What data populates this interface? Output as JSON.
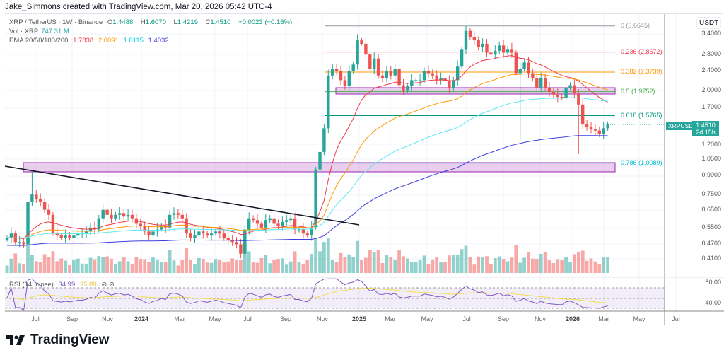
{
  "credit": "Jake_Simmons created with TradingView.com, Mar 20, 2026 05:42 UTC-4",
  "legend": {
    "symbol": "XRP / TetherUS · 1W · Binance",
    "o": "O",
    "o_val": "1.4488",
    "h": "H",
    "h_val": "1.6070",
    "l": "L",
    "l_val": "1.4219",
    "c": "C",
    "c_val": "1.4510",
    "change": "+0.0023 (+0.16%)",
    "vol_label": "Vol · XRP",
    "vol_val": "747.31 M",
    "ema_label": "EMA 20/50/100/200",
    "ema_vals": [
      "1.7838",
      "2.0091",
      "1.8115",
      "1.4032"
    ],
    "rsi_label": "RSI (14, close)",
    "rsi_val": "34.99",
    "rsi_ma": "35.89"
  },
  "colors": {
    "up": "#26a69a",
    "down": "#ef5350",
    "ema20": "#f23645",
    "ema50": "#ff9800",
    "ema100": "#5ee8f0",
    "ema200": "#3f3fe0",
    "rsi": "#7e57c2",
    "rsi_ma": "#f5dc50"
  },
  "price_scale": {
    "currency": "USDT",
    "ticks": [
      "3.4000",
      "2.8000",
      "2.4000",
      "2.0000",
      "1.7000",
      "1.2000",
      "1.0500",
      "0.9000",
      "0.7500",
      "0.6500",
      "0.5500",
      "0.4700",
      "0.4100"
    ],
    "rsi_ticks": [
      "80.00",
      "40.00"
    ],
    "last_label": "XRPUSDT",
    "last_price": "1.4510",
    "countdown": "2d 15h"
  },
  "fib": [
    {
      "label": "0 (3.6645)",
      "price": 3.6645,
      "color": "#9598a1"
    },
    {
      "label": "0.236 (2.8672)",
      "price": 2.8672,
      "color": "#f23645"
    },
    {
      "label": "0.382 (2.3739)",
      "price": 2.3739,
      "color": "#ff9800"
    },
    {
      "label": "0.5 (1.9752)",
      "price": 1.9752,
      "color": "#4caf50"
    },
    {
      "label": "0.618 (1.5765)",
      "price": 1.5765,
      "color": "#089981"
    },
    {
      "label": "0.786 (1.0089)",
      "price": 1.0089,
      "color": "#00bcd4"
    }
  ],
  "time_axis": [
    "Jul",
    "Sep",
    "Nov",
    "2024",
    "Mar",
    "May",
    "Jul",
    "Sep",
    "Nov",
    "2025",
    "Mar",
    "May",
    "Jul",
    "Sep",
    "Nov",
    "2026",
    "Mar",
    "May",
    "Jul"
  ],
  "logo": "TradingView",
  "chart_data": {
    "type": "candlestick",
    "interval": "1W",
    "start": "2023-06",
    "scale": "log",
    "closes": [
      0.5,
      0.52,
      0.48,
      0.48,
      0.47,
      0.7,
      0.75,
      0.72,
      0.7,
      0.65,
      0.62,
      0.52,
      0.51,
      0.5,
      0.51,
      0.5,
      0.51,
      0.52,
      0.52,
      0.53,
      0.55,
      0.54,
      0.6,
      0.65,
      0.62,
      0.6,
      0.62,
      0.63,
      0.61,
      0.62,
      0.6,
      0.57,
      0.56,
      0.53,
      0.51,
      0.53,
      0.54,
      0.56,
      0.55,
      0.62,
      0.63,
      0.62,
      0.6,
      0.52,
      0.5,
      0.51,
      0.53,
      0.52,
      0.51,
      0.52,
      0.53,
      0.52,
      0.5,
      0.49,
      0.48,
      0.47,
      0.43,
      0.54,
      0.6,
      0.59,
      0.57,
      0.55,
      0.59,
      0.6,
      0.57,
      0.56,
      0.58,
      0.59,
      0.6,
      0.54,
      0.54,
      0.52,
      0.51,
      0.55,
      0.95,
      1.12,
      1.4,
      2.3,
      2.45,
      2.4,
      2.2,
      2.08,
      2.4,
      2.55,
      3.2,
      3.1,
      2.8,
      2.45,
      2.7,
      2.3,
      2.25,
      2.4,
      2.3,
      2.45,
      2.1,
      2.0,
      2.08,
      2.2,
      2.2,
      2.2,
      2.4,
      2.35,
      2.3,
      2.2,
      2.25,
      2.18,
      2.05,
      2.2,
      2.5,
      2.95,
      3.5,
      3.3,
      3.2,
      3.0,
      3.1,
      2.85,
      2.8,
      2.9,
      3.05,
      2.85,
      2.95,
      2.85,
      2.35,
      2.45,
      2.6,
      2.35,
      2.25,
      2.05,
      2.25,
      2.05,
      1.97,
      1.92,
      1.88,
      1.86,
      2.05,
      2.1,
      1.95,
      1.75,
      1.45,
      1.42,
      1.39,
      1.37,
      1.33,
      1.4,
      1.451
    ]
  }
}
